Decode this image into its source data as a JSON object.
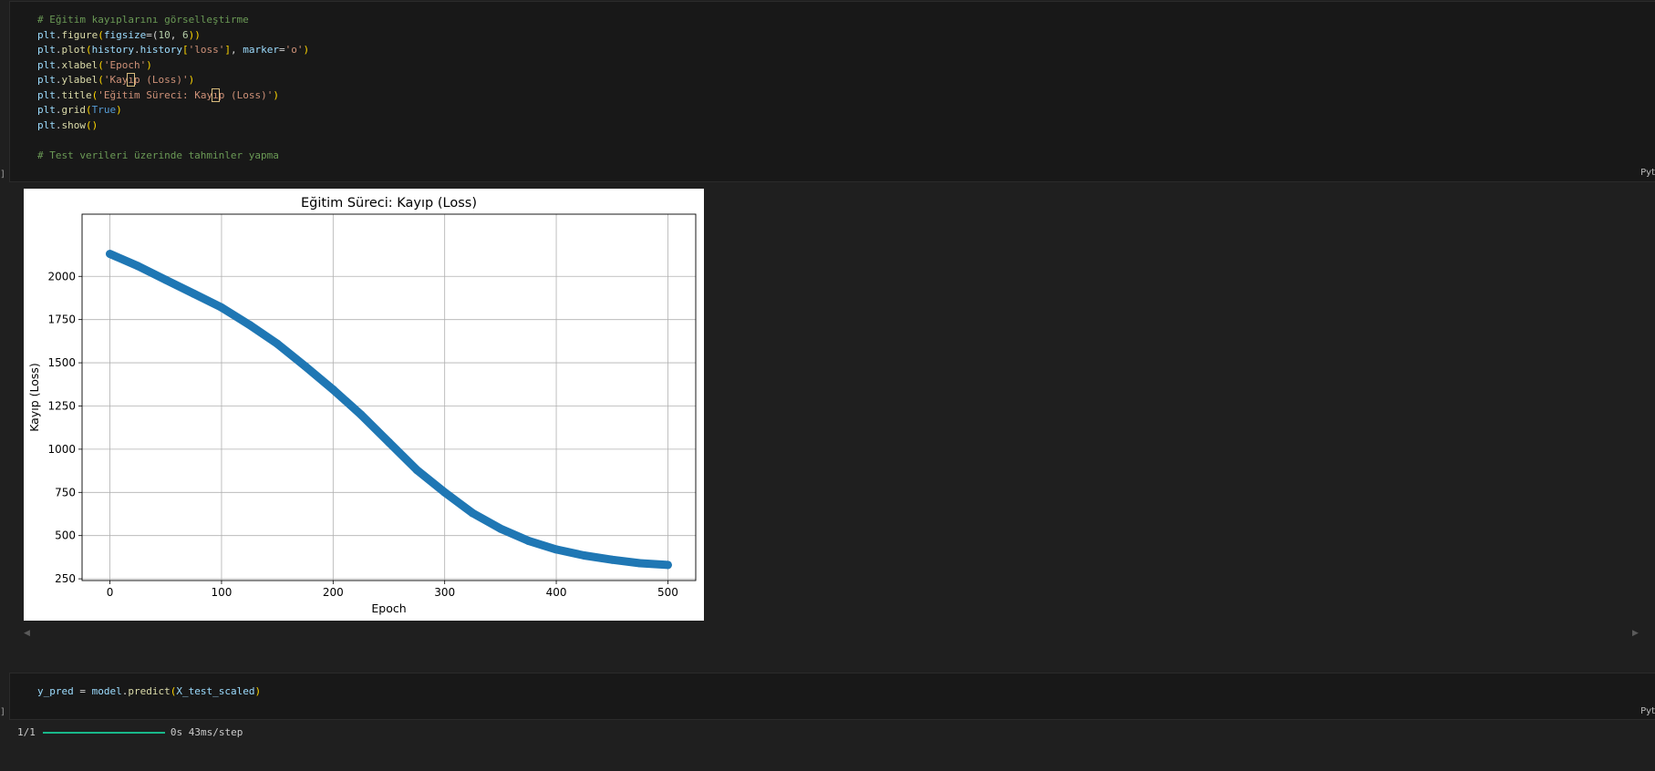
{
  "cell1": {
    "lines": [
      [
        {
          "t": "# Eğitim kayıplarını görselleştirme",
          "c": "cm"
        }
      ],
      [
        {
          "t": "plt",
          "c": "var"
        },
        {
          "t": ".",
          "c": "op"
        },
        {
          "t": "figure",
          "c": "fn"
        },
        {
          "t": "(",
          "c": "br"
        },
        {
          "t": "figsize",
          "c": "var"
        },
        {
          "t": "=(",
          "c": "op"
        },
        {
          "t": "10",
          "c": "num"
        },
        {
          "t": ", ",
          "c": "op"
        },
        {
          "t": "6",
          "c": "num"
        },
        {
          "t": "))",
          "c": "br"
        }
      ],
      [
        {
          "t": "plt",
          "c": "var"
        },
        {
          "t": ".",
          "c": "op"
        },
        {
          "t": "plot",
          "c": "fn"
        },
        {
          "t": "(",
          "c": "br"
        },
        {
          "t": "history",
          "c": "var"
        },
        {
          "t": ".",
          "c": "op"
        },
        {
          "t": "history",
          "c": "var"
        },
        {
          "t": "[",
          "c": "br"
        },
        {
          "t": "'loss'",
          "c": "str"
        },
        {
          "t": "]",
          "c": "br"
        },
        {
          "t": ", ",
          "c": "op"
        },
        {
          "t": "marker",
          "c": "var"
        },
        {
          "t": "=",
          "c": "op"
        },
        {
          "t": "'o'",
          "c": "str"
        },
        {
          "t": ")",
          "c": "br"
        }
      ],
      [
        {
          "t": "plt",
          "c": "var"
        },
        {
          "t": ".",
          "c": "op"
        },
        {
          "t": "xlabel",
          "c": "fn"
        },
        {
          "t": "(",
          "c": "br"
        },
        {
          "t": "'Epoch'",
          "c": "str"
        },
        {
          "t": ")",
          "c": "br"
        }
      ],
      [
        {
          "t": "plt",
          "c": "var"
        },
        {
          "t": ".",
          "c": "op"
        },
        {
          "t": "ylabel",
          "c": "fn"
        },
        {
          "t": "(",
          "c": "br"
        },
        {
          "t": "'Kay",
          "c": "str"
        },
        {
          "t": "ı",
          "c": "str",
          "box": true
        },
        {
          "t": "p (Loss)'",
          "c": "str"
        },
        {
          "t": ")",
          "c": "br"
        }
      ],
      [
        {
          "t": "plt",
          "c": "var"
        },
        {
          "t": ".",
          "c": "op"
        },
        {
          "t": "title",
          "c": "fn"
        },
        {
          "t": "(",
          "c": "br"
        },
        {
          "t": "'Eğitim Süreci: Kay",
          "c": "str"
        },
        {
          "t": "ı",
          "c": "str",
          "box": true
        },
        {
          "t": "p (Loss)'",
          "c": "str"
        },
        {
          "t": ")",
          "c": "br"
        }
      ],
      [
        {
          "t": "plt",
          "c": "var"
        },
        {
          "t": ".",
          "c": "op"
        },
        {
          "t": "grid",
          "c": "fn"
        },
        {
          "t": "(",
          "c": "br"
        },
        {
          "t": "True",
          "c": "kw"
        },
        {
          "t": ")",
          "c": "br"
        }
      ],
      [
        {
          "t": "plt",
          "c": "var"
        },
        {
          "t": ".",
          "c": "op"
        },
        {
          "t": "show",
          "c": "fn"
        },
        {
          "t": "()",
          "c": "br"
        }
      ],
      [],
      [
        {
          "t": "# Test verileri üzerinde tahminler yapma",
          "c": "cm"
        }
      ]
    ],
    "language": "Pyt",
    "bracket": "]"
  },
  "cell2": {
    "lines": [
      [
        {
          "t": "y_pred",
          "c": "var"
        },
        {
          "t": " = ",
          "c": "op"
        },
        {
          "t": "model",
          "c": "var"
        },
        {
          "t": ".",
          "c": "op"
        },
        {
          "t": "predict",
          "c": "fn"
        },
        {
          "t": "(",
          "c": "br"
        },
        {
          "t": "X_test_scaled",
          "c": "var"
        },
        {
          "t": ")",
          "c": "br"
        }
      ]
    ],
    "language": "Pyt",
    "bracket": "]"
  },
  "output": {
    "progress_count": "1/1",
    "progress_fraction": 1.0,
    "progress_time": "0s 43ms/step"
  },
  "scroll": {
    "left_arrow": "◀",
    "right_arrow": "▶"
  },
  "colors": {
    "line": "#1f77b4",
    "grid": "#b0b0b0",
    "progress": "#18b88a"
  },
  "chart_data": {
    "type": "line",
    "title": "Eğitim Süreci: Kayıp (Loss)",
    "xlabel": "Epoch",
    "ylabel": "Kayıp (Loss)",
    "xlim": [
      -25,
      525
    ],
    "ylim": [
      240,
      2360
    ],
    "xticks": [
      0,
      100,
      200,
      300,
      400,
      500
    ],
    "yticks": [
      250,
      500,
      750,
      1000,
      1250,
      1500,
      1750,
      2000
    ],
    "grid": true,
    "marker": "o",
    "series": [
      {
        "x": [
          0,
          25,
          50,
          75,
          100,
          125,
          150,
          175,
          200,
          225,
          250,
          275,
          300,
          325,
          350,
          375,
          400,
          425,
          450,
          475,
          500
        ],
        "values": [
          2130,
          2060,
          1980,
          1900,
          1820,
          1720,
          1610,
          1480,
          1345,
          1200,
          1040,
          880,
          750,
          630,
          540,
          470,
          420,
          385,
          360,
          340,
          330
        ]
      }
    ]
  }
}
